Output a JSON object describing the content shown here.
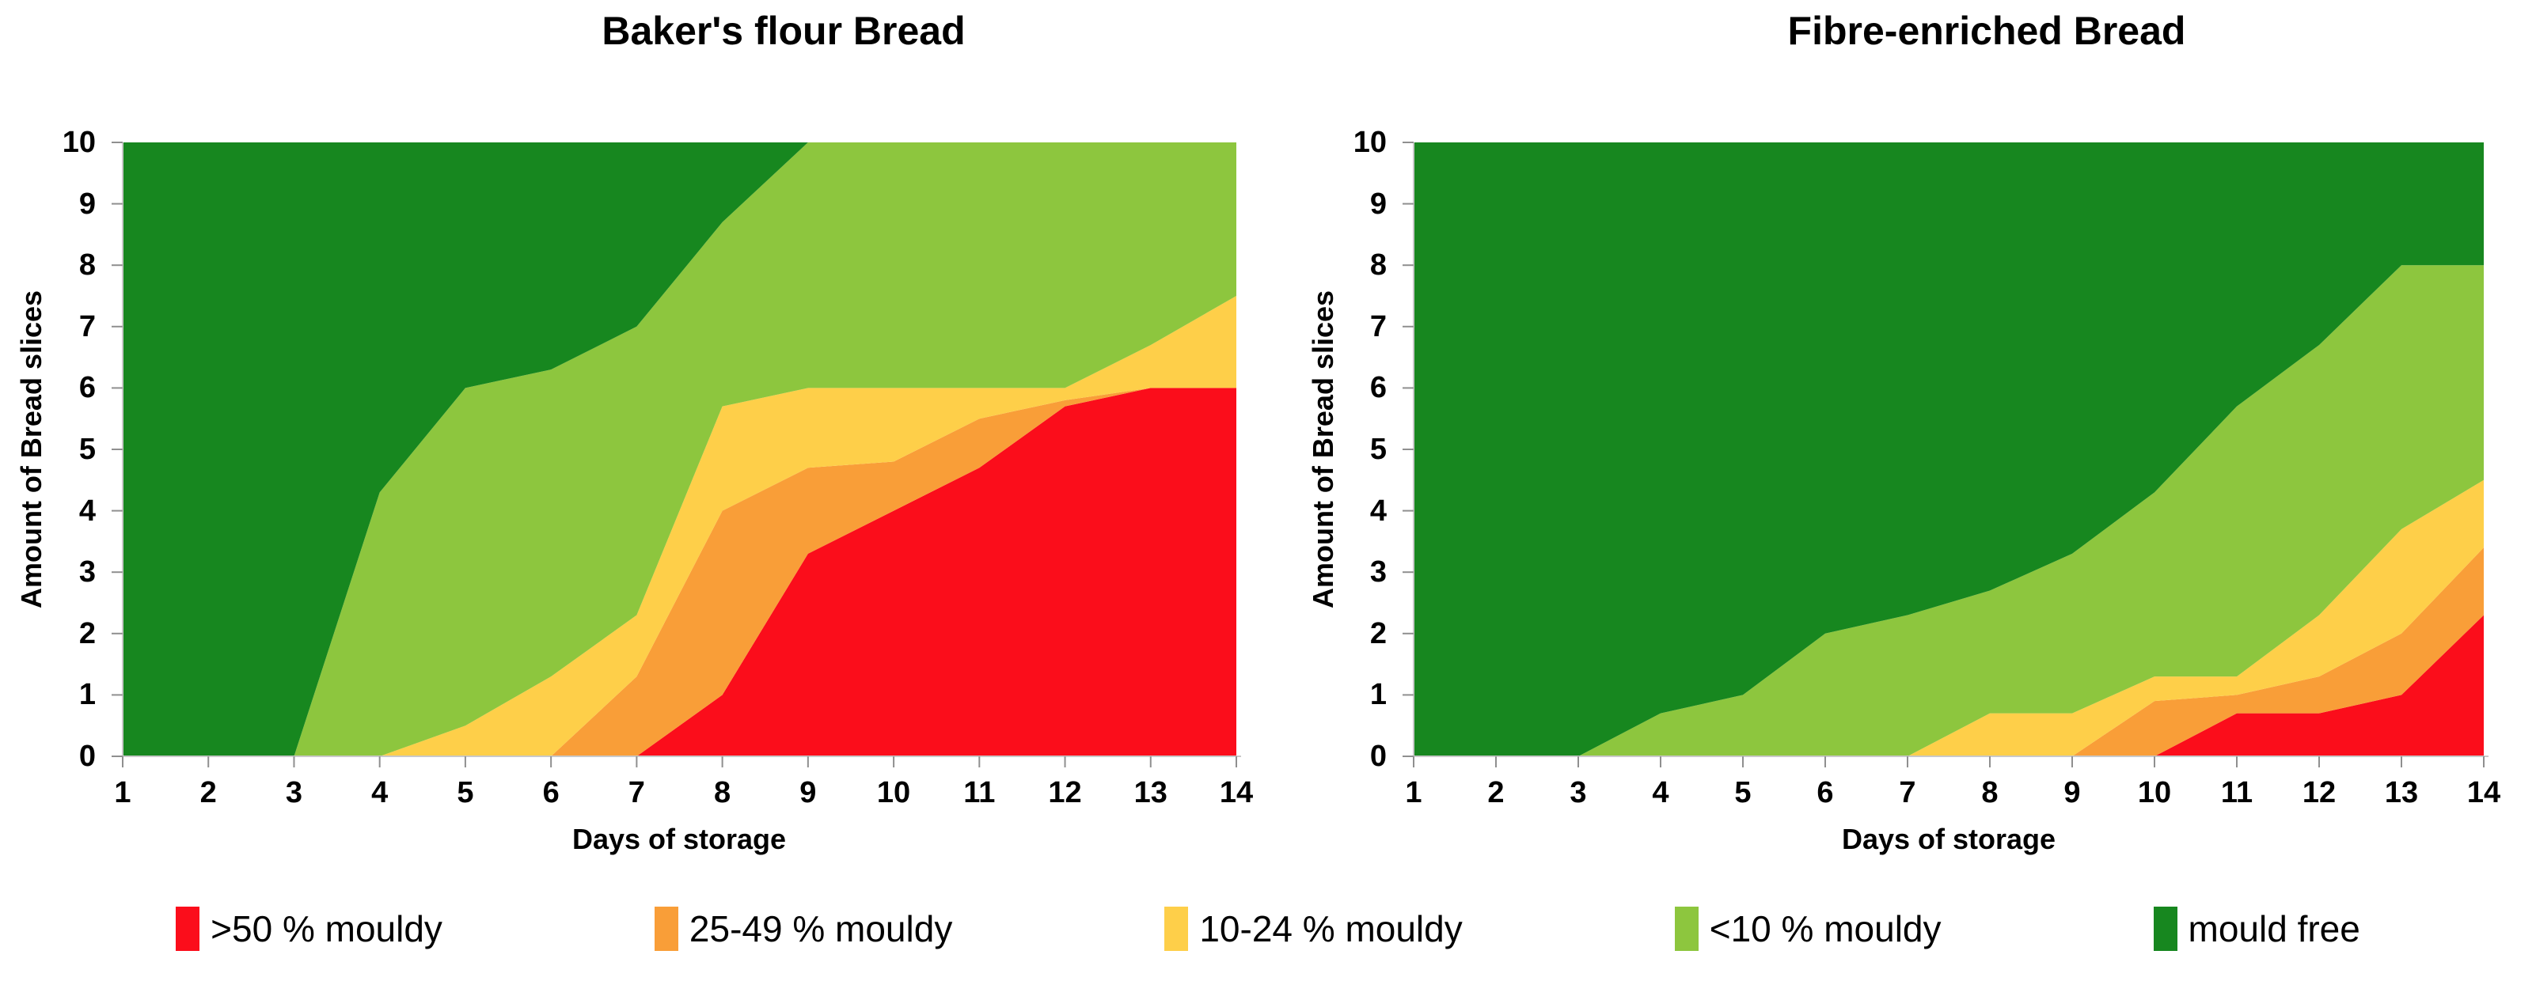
{
  "page": {
    "background": "#ffffff"
  },
  "colors": {
    "red": "#fb0d1b",
    "orange": "#f99e38",
    "yellow": "#fecf49",
    "light_green": "#8dc63e",
    "dark_green": "#17871f",
    "axis_line": "#c9c9c9",
    "tick_mark": "#8f8f8f",
    "text": "#000000"
  },
  "legend": {
    "items": [
      {
        "label": ">50 % mouldy",
        "color": "red"
      },
      {
        "label": "25-49 % mouldy",
        "color": "orange"
      },
      {
        "label": "10-24 % mouldy",
        "color": "yellow"
      },
      {
        "label": "<10 % mouldy",
        "color": "light_green"
      },
      {
        "label": "mould free",
        "color": "dark_green"
      }
    ]
  },
  "chart_data": [
    {
      "type": "area",
      "stacked": true,
      "title": "Baker's flour Bread",
      "xlabel": "Days of storage",
      "ylabel": "Amount of Bread slices",
      "x": [
        1,
        2,
        3,
        4,
        5,
        6,
        7,
        8,
        9,
        10,
        11,
        12,
        13,
        14
      ],
      "xlim": [
        1,
        14
      ],
      "ylim": [
        0,
        10
      ],
      "yticks": [
        0,
        1,
        2,
        3,
        4,
        5,
        6,
        7,
        8,
        9,
        10
      ],
      "grid": false,
      "legend_position": "bottom",
      "series": [
        {
          "name": ">50 % mouldy",
          "color": "red",
          "values": [
            0,
            0,
            0,
            0,
            0,
            0,
            0,
            1,
            3.3,
            4,
            4.7,
            5.7,
            6,
            6
          ]
        },
        {
          "name": "25-49 % mouldy",
          "color": "orange",
          "values": [
            0,
            0,
            0,
            0,
            0,
            0,
            1.3,
            3,
            1.4,
            0.8,
            0.8,
            0.1,
            0,
            0
          ]
        },
        {
          "name": "10-24 % mouldy",
          "color": "yellow",
          "values": [
            0,
            0,
            0,
            0,
            0.5,
            1.3,
            1,
            1.7,
            1.3,
            1.2,
            0.5,
            0.2,
            0.7,
            1.5
          ]
        },
        {
          "name": "<10 % mouldy",
          "color": "light_green",
          "values": [
            0,
            0,
            0,
            4.3,
            5.5,
            5,
            4.7,
            3,
            4,
            4,
            4,
            4,
            3.3,
            2.5
          ]
        },
        {
          "name": "mould free",
          "color": "dark_green",
          "values": [
            10,
            10,
            10,
            5.7,
            4,
            3.7,
            3,
            1.3,
            0,
            0,
            0,
            0,
            0,
            0
          ]
        }
      ]
    },
    {
      "type": "area",
      "stacked": true,
      "title": "Fibre-enriched Bread",
      "xlabel": "Days of storage",
      "ylabel": "Amount of Bread slices",
      "x": [
        1,
        2,
        3,
        4,
        5,
        6,
        7,
        8,
        9,
        10,
        11,
        12,
        13,
        14
      ],
      "xlim": [
        1,
        14
      ],
      "ylim": [
        0,
        10
      ],
      "yticks": [
        0,
        1,
        2,
        3,
        4,
        5,
        6,
        7,
        8,
        9,
        10
      ],
      "grid": false,
      "legend_position": "bottom",
      "series": [
        {
          "name": ">50 % mouldy",
          "color": "red",
          "values": [
            0,
            0,
            0,
            0,
            0,
            0,
            0,
            0,
            0,
            0,
            0.7,
            0.7,
            1,
            2.3
          ]
        },
        {
          "name": "25-49 % mouldy",
          "color": "orange",
          "values": [
            0,
            0,
            0,
            0,
            0,
            0,
            0,
            0,
            0,
            0.9,
            0.3,
            0.6,
            1,
            1.1
          ]
        },
        {
          "name": "10-24 % mouldy",
          "color": "yellow",
          "values": [
            0,
            0,
            0,
            0,
            0,
            0,
            0,
            0.7,
            0.7,
            0.4,
            0.3,
            1,
            1.7,
            1.1
          ]
        },
        {
          "name": "<10 % mouldy",
          "color": "light_green",
          "values": [
            0,
            0,
            0,
            0.7,
            1,
            2,
            2.3,
            2,
            2.6,
            3,
            4.4,
            4.4,
            4.3,
            3.5
          ]
        },
        {
          "name": "mould free",
          "color": "dark_green",
          "values": [
            10,
            10,
            10,
            9.3,
            9,
            8,
            7.7,
            7.3,
            6.7,
            5.7,
            4.3,
            3.3,
            2,
            2
          ]
        }
      ]
    }
  ]
}
